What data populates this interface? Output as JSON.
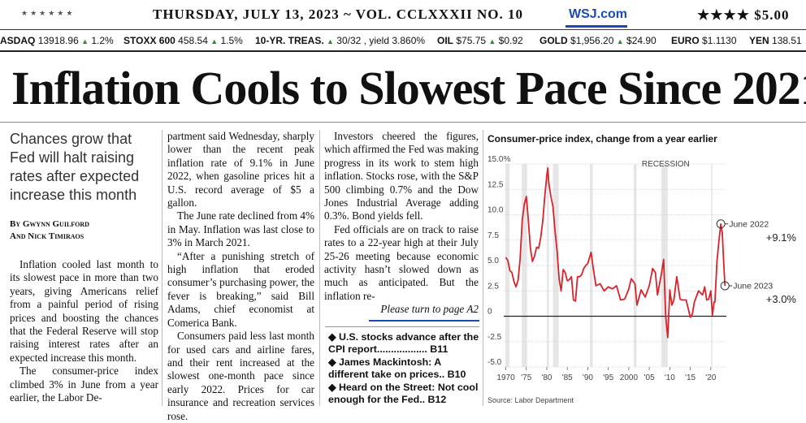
{
  "masthead": {
    "stars_left": "★★★★★★",
    "dateline": "THURSDAY, JULY 13, 2023 ~ VOL. CCLXXXII NO. 10",
    "site": "WSJ.com",
    "price": "★★★★ $5.00"
  },
  "ticker": [
    {
      "name": "ASDAQ",
      "value": "13918.96",
      "change": "1.2%"
    },
    {
      "name": "STOXX 600",
      "value": "458.54",
      "change": "1.5%"
    },
    {
      "name": "10-YR. TREAS.",
      "value": "",
      "change": "30/32 , yield 3.860%"
    },
    {
      "name": "OIL",
      "value": "$75.75",
      "change": "$0.92"
    },
    {
      "name": "GOLD",
      "value": "$1,956.20",
      "change": "$24.90"
    },
    {
      "name": "EURO",
      "value": "$1.1130",
      "change": ""
    },
    {
      "name": "YEN",
      "value": "138.51",
      "change": ""
    }
  ],
  "headline": "Inflation Cools to Slowest Pace Since 2021",
  "deck": "Chances grow that Fed will halt raising rates after expected increase this month",
  "byline": {
    "line1": "By Gwynn Guilford",
    "line2": "And Nick Timiraos"
  },
  "col1": [
    "Inflation cooled last month to its slowest pace in more than two years, giving Americans relief from a painful period of rising prices and boosting the chances that the Federal Reserve will stop raising interest rates after an expected increase this month.",
    "The consumer-price index climbed 3% in June from a year earlier, the Labor De-"
  ],
  "col2": [
    "partment said Wednesday, sharply lower than the recent peak inflation rate of 9.1% in June 2022, when gasoline prices hit a U.S. record average of $5 a gallon.",
    "The June rate declined from 4% in May. Inflation was last close to 3% in March 2021.",
    "“After a punishing stretch of high inflation that eroded consumer’s purchasing power, the fever is breaking,” said Bill Adams, chief economist at Comerica Bank.",
    "Consumers paid less last month for used cars and airline fares, and their rent increased at the slowest one-month pace since early 2022. Prices for car insurance and recreation services rose."
  ],
  "col3": [
    "Investors cheered the figures, which affirmed the Fed was making progress in its work to stem high inflation. Stocks rose, with the S&P 500 climbing 0.7% and the Dow Jones Industrial Average adding 0.3%. Bond yields fell.",
    "Fed officials are on track to raise rates to a 22-year high at their July 25-26 meeting because economic activity hasn’t slowed down as much as anticipated. But the inflation re-"
  ],
  "turn": "Please turn to page A2",
  "index": [
    "◆ U.S. stocks advance after the CPI report.................. B11",
    "◆ James Mackintosh: A different take on prices.. B10",
    "◆ Heard on the Street: Not cool enough for the Fed.. B12"
  ],
  "chart_data": {
    "type": "line",
    "title": "Consumer-price index, change from a year earlier",
    "source": "Source: Labor Department",
    "recession_label": "RECESSION",
    "ylim": [
      -5,
      15
    ],
    "yticks": [
      15,
      12.5,
      10,
      7.5,
      5,
      2.5,
      0,
      -2.5,
      -5
    ],
    "ytick_labels": [
      "15.0%",
      "12.5",
      "10.0",
      "7.5",
      "5.0",
      "2.5",
      "0",
      "-2.5",
      "-5.0"
    ],
    "xlim": [
      1969.5,
      2023.8
    ],
    "xticks": [
      1970,
      1975,
      1980,
      1985,
      1990,
      1995,
      2000,
      2005,
      2010,
      2015,
      2020
    ],
    "xtick_labels": [
      "1970",
      "'75",
      "'80",
      "'85",
      "'90",
      "'95",
      "2000",
      "'05",
      "'10",
      "'15",
      "'20"
    ],
    "recessions": [
      [
        1969.9,
        1970.9
      ],
      [
        1973.9,
        1975.2
      ],
      [
        1980.0,
        1980.5
      ],
      [
        1981.5,
        1982.9
      ],
      [
        1990.5,
        1991.2
      ],
      [
        2001.2,
        2001.9
      ],
      [
        2007.9,
        2009.5
      ],
      [
        2020.1,
        2020.4
      ]
    ],
    "series": [
      {
        "color": "#d8232a",
        "x": [
          1970.0,
          1970.5,
          1971.0,
          1971.5,
          1972.0,
          1972.5,
          1973.0,
          1973.5,
          1974.0,
          1974.5,
          1975.0,
          1975.5,
          1976.0,
          1976.5,
          1977.0,
          1977.5,
          1978.0,
          1978.5,
          1979.0,
          1979.5,
          1980.0,
          1980.25,
          1980.5,
          1981.0,
          1981.5,
          1982.0,
          1982.5,
          1983.0,
          1983.5,
          1984.0,
          1984.5,
          1985.0,
          1985.5,
          1986.0,
          1986.5,
          1987.0,
          1987.5,
          1988.0,
          1988.5,
          1989.0,
          1989.5,
          1990.0,
          1990.8,
          1991.3,
          1992.0,
          1993.0,
          1994.0,
          1995.0,
          1996.0,
          1997.0,
          1998.0,
          1999.0,
          2000.0,
          2000.6,
          2001.5,
          2002.0,
          2003.0,
          2004.0,
          2005.0,
          2005.8,
          2006.5,
          2007.0,
          2008.0,
          2008.5,
          2009.0,
          2009.5,
          2010.0,
          2010.5,
          2011.0,
          2011.7,
          2012.5,
          2013.0,
          2014.0,
          2015.0,
          2015.5,
          2016.0,
          2017.0,
          2018.0,
          2018.5,
          2019.0,
          2019.5,
          2020.0,
          2020.4,
          2020.8,
          2021.0,
          2021.5,
          2022.0,
          2022.45,
          2022.8,
          2023.0,
          2023.45
        ],
        "y": [
          5.8,
          5.5,
          4.5,
          4.3,
          3.4,
          2.9,
          3.6,
          5.7,
          9.4,
          11.0,
          11.8,
          9.4,
          6.7,
          5.4,
          5.9,
          6.8,
          6.7,
          7.7,
          9.3,
          11.8,
          13.9,
          14.6,
          13.1,
          11.8,
          10.8,
          8.4,
          6.5,
          3.7,
          2.5,
          4.6,
          4.3,
          3.5,
          3.6,
          3.9,
          1.6,
          1.5,
          3.9,
          3.9,
          4.1,
          4.7,
          5.0,
          5.2,
          6.3,
          4.8,
          3.0,
          3.2,
          2.5,
          2.9,
          2.7,
          3.0,
          1.6,
          1.7,
          2.7,
          3.7,
          3.2,
          1.1,
          2.6,
          1.9,
          3.0,
          4.7,
          4.3,
          2.1,
          4.3,
          5.6,
          0.0,
          -2.1,
          2.6,
          1.1,
          1.6,
          3.9,
          1.7,
          1.6,
          1.6,
          -0.1,
          0.2,
          1.4,
          2.5,
          2.1,
          2.9,
          1.6,
          1.7,
          2.5,
          0.1,
          1.4,
          1.4,
          5.4,
          7.5,
          9.1,
          8.2,
          6.4,
          3.0
        ]
      }
    ],
    "annotations": [
      {
        "label": "June 2022",
        "value_label": "+9.1%",
        "x": 2022.45,
        "y": 9.1
      },
      {
        "label": "June 2023",
        "value_label": "+3.0%",
        "x": 2023.45,
        "y": 3.0
      }
    ]
  }
}
